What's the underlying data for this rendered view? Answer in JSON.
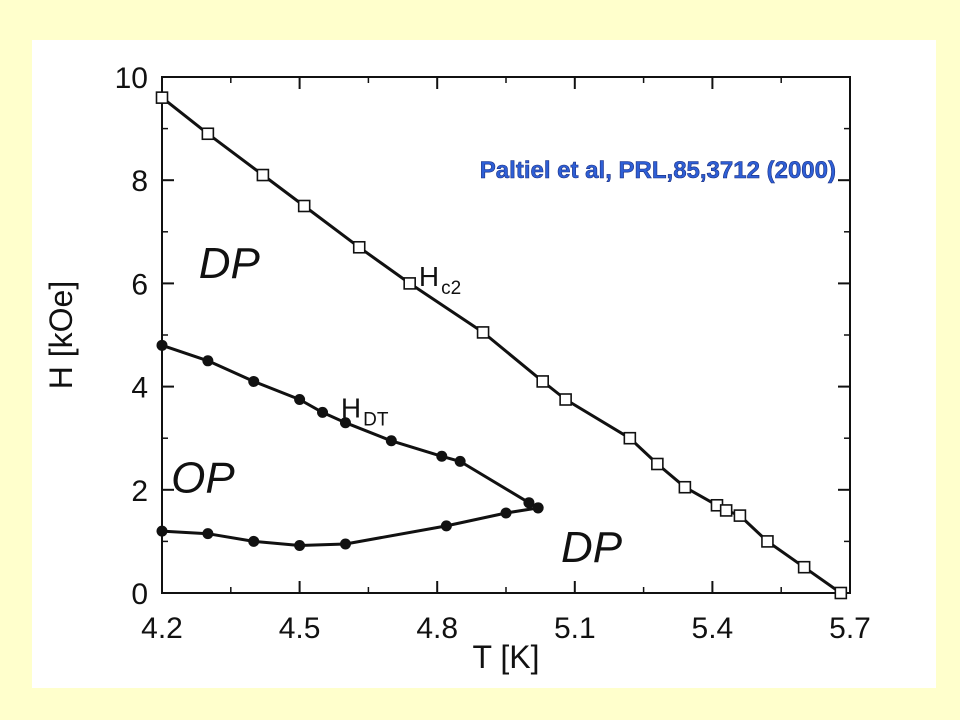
{
  "chart_data": {
    "type": "line",
    "xlabel": "T [K]",
    "ylabel": "H  [kOe]",
    "xlim": [
      4.2,
      5.7
    ],
    "ylim": [
      0,
      10
    ],
    "xticks": [
      "4.2",
      "4.5",
      "4.8",
      "5.1",
      "5.4",
      "5.7"
    ],
    "yticks": [
      "0",
      "2",
      "4",
      "6",
      "8",
      "10"
    ],
    "grid": false,
    "series": [
      {
        "name": "Hc2",
        "label_main": "H",
        "label_sub": "c2",
        "marker": "open-square",
        "x": [
          4.2,
          4.3,
          4.42,
          4.51,
          4.63,
          4.74,
          4.9,
          5.03,
          5.08,
          5.22,
          5.28,
          5.34,
          5.41,
          5.43,
          5.46,
          5.52,
          5.6,
          5.68
        ],
        "y": [
          9.6,
          8.9,
          8.1,
          7.5,
          6.7,
          6.0,
          5.05,
          4.1,
          3.75,
          3.0,
          2.5,
          2.05,
          1.7,
          1.6,
          1.5,
          1.0,
          0.5,
          0.0
        ]
      },
      {
        "name": "HDT upper",
        "label_main": "H",
        "label_sub": "DT",
        "marker": "filled-circle",
        "x": [
          4.2,
          4.3,
          4.4,
          4.5,
          4.55,
          4.6,
          4.7,
          4.81,
          4.85,
          5.0,
          5.02
        ],
        "y": [
          4.8,
          4.5,
          4.1,
          3.75,
          3.5,
          3.3,
          2.95,
          2.65,
          2.55,
          1.75,
          1.65
        ]
      },
      {
        "name": "HDT lower",
        "marker": "filled-circle",
        "x": [
          4.2,
          4.3,
          4.4,
          4.5,
          4.6,
          4.82,
          4.95,
          5.02
        ],
        "y": [
          1.2,
          1.15,
          1.0,
          0.92,
          0.95,
          1.3,
          1.55,
          1.65
        ]
      }
    ],
    "annotations": {
      "regions": [
        {
          "id": "dp-upper",
          "text": "DP",
          "x": 4.28,
          "y": 6.1
        },
        {
          "id": "op",
          "text": "OP",
          "x": 4.22,
          "y": 1.95
        },
        {
          "id": "dp-lower",
          "text": "DP",
          "x": 5.07,
          "y": 0.6
        }
      ],
      "hc2_label": {
        "x": 4.76,
        "y": 5.95
      },
      "hdt_label": {
        "x": 4.59,
        "y": 3.4
      }
    },
    "citation": "Paltiel et al, PRL,85,3712 (2000)"
  },
  "colors": {
    "background": "#FFFFCC",
    "panel": "#FFFFFF",
    "ink": "#111111",
    "citation": "#2E5FD6"
  }
}
